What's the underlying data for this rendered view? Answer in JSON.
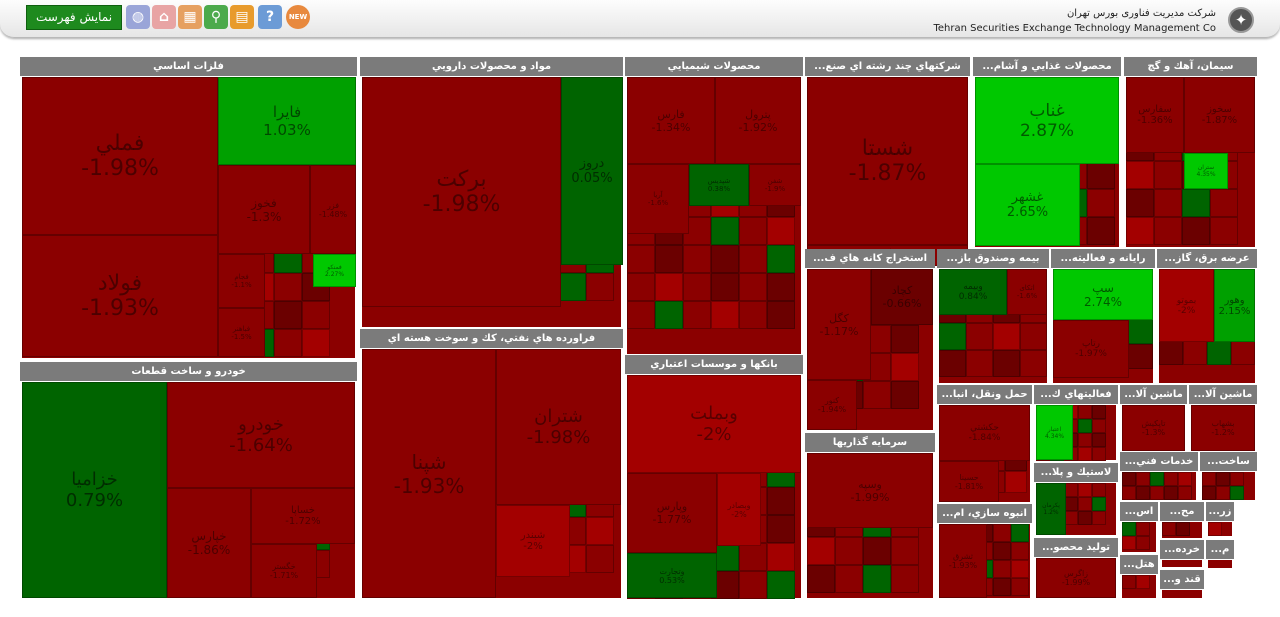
{
  "header": {
    "list_button": "نمایش فهرست",
    "company_fa": "شرکت مدیریت فناوری بورس تهران",
    "company_en": "Tehran Securities Exchange Technology Management Co",
    "icons": [
      "new-icon",
      "help-icon",
      "chat-icon",
      "search-icon",
      "table-icon",
      "home-icon",
      "globe-icon"
    ]
  },
  "sectors": [
    {
      "name": "فلزات اساسي",
      "stocks": [
        {
          "sym": "فملي",
          "chg": "-1.98%",
          "c": "neg1"
        },
        {
          "sym": "فولاد",
          "chg": "-1.93%",
          "c": "neg1"
        },
        {
          "sym": "فايرا",
          "chg": "1.03%",
          "c": "pos1"
        },
        {
          "sym": "فخوز",
          "chg": "-1.3%",
          "c": "neg1"
        },
        {
          "sym": "فزر",
          "chg": "-1.48%",
          "c": "neg1"
        },
        {
          "sym": "فمنكو",
          "chg": "2.27%",
          "c": "pos3"
        },
        {
          "sym": "فجام",
          "chg": "-1.1%",
          "c": "neg1"
        },
        {
          "sym": "فباهنر",
          "chg": "-1.5%",
          "c": "neg1"
        }
      ]
    },
    {
      "name": "مواد و محصولات دارويي",
      "stocks": [
        {
          "sym": "بركت",
          "chg": "-1.98%",
          "c": "neg1"
        },
        {
          "sym": "دروز",
          "chg": "0.05%",
          "c": "pos2"
        }
      ]
    },
    {
      "name": "محصولات شيميايي",
      "stocks": [
        {
          "sym": "فارس",
          "chg": "-1.34%",
          "c": "neg1"
        },
        {
          "sym": "پترول",
          "chg": "-1.92%",
          "c": "neg1"
        },
        {
          "sym": "شپديس",
          "chg": "0.38%",
          "c": "pos2"
        },
        {
          "sym": "آريا",
          "chg": "-1.6%",
          "c": "neg1"
        },
        {
          "sym": "شفن",
          "chg": "-1.9%",
          "c": "neg1"
        }
      ]
    },
    {
      "name": "شركتهاي چند رشته اي صنع...",
      "stocks": [
        {
          "sym": "شستا",
          "chg": "-1.87%",
          "c": "neg1"
        },
        {
          "sym": "وامید",
          "chg": "-1.99%",
          "c": "neg1"
        }
      ]
    },
    {
      "name": "محصولات غذايي و آشام...",
      "stocks": [
        {
          "sym": "غناب",
          "chg": "2.87%",
          "c": "pos3"
        },
        {
          "sym": "غشهر",
          "chg": "2.65%",
          "c": "pos3"
        }
      ]
    },
    {
      "name": "سيمان، آهك و گچ",
      "stocks": [
        {
          "sym": "سفارس",
          "chg": "-1.36%",
          "c": "neg1"
        },
        {
          "sym": "سخوز",
          "chg": "-1.87%",
          "c": "neg1"
        },
        {
          "sym": "ستران",
          "chg": "4.35%",
          "c": "pos3"
        }
      ]
    },
    {
      "name": "استخراج كانه هاي ف...",
      "stocks": [
        {
          "sym": "كگل",
          "chg": "-1.17%",
          "c": "neg1"
        },
        {
          "sym": "كچاد",
          "chg": "-0.66%",
          "c": "neg3"
        },
        {
          "sym": "كنور",
          "chg": "-1.94%",
          "c": "neg1"
        }
      ]
    },
    {
      "name": "بيمه وصندوق باز...",
      "stocks": [
        {
          "sym": "وبيمه",
          "chg": "0.84%",
          "c": "pos2"
        },
        {
          "sym": "اتكای",
          "chg": "-1.6%",
          "c": "neg1"
        }
      ]
    },
    {
      "name": "رايانه و فعاليته...",
      "stocks": [
        {
          "sym": "سپ",
          "chg": "2.74%",
          "c": "pos3"
        },
        {
          "sym": "رتاپ",
          "chg": "-1.97%",
          "c": "neg1"
        }
      ]
    },
    {
      "name": "عرضه برق، گاز...",
      "stocks": [
        {
          "sym": "بموتو",
          "chg": "-2%",
          "c": "neg2"
        },
        {
          "sym": "وهور",
          "chg": "2.15%",
          "c": "pos1"
        }
      ]
    },
    {
      "name": "خودرو و ساخت قطعات",
      "stocks": [
        {
          "sym": "خزاميا",
          "chg": "0.79%",
          "c": "pos2"
        },
        {
          "sym": "خودرو",
          "chg": "-1.64%",
          "c": "neg1"
        },
        {
          "sym": "خساپا",
          "chg": "-1.72%",
          "c": "neg1"
        },
        {
          "sym": "خپارس",
          "chg": "-1.86%",
          "c": "neg1"
        },
        {
          "sym": "خگستر",
          "chg": "-1.71%",
          "c": "neg1"
        }
      ]
    },
    {
      "name": "فراورده هاي نفتي، كك و سوخت هسته اي",
      "stocks": [
        {
          "sym": "شپنا",
          "chg": "-1.93%",
          "c": "neg1"
        },
        {
          "sym": "شتران",
          "chg": "-1.98%",
          "c": "neg1"
        },
        {
          "sym": "شبندر",
          "chg": "-2%",
          "c": "neg2"
        }
      ]
    },
    {
      "name": "بانكها و موسسات اعتباري",
      "stocks": [
        {
          "sym": "وبملت",
          "chg": "-2%",
          "c": "neg2"
        },
        {
          "sym": "وپارس",
          "chg": "-1.77%",
          "c": "neg1"
        },
        {
          "sym": "وبصادر",
          "chg": "-2%",
          "c": "neg2"
        },
        {
          "sym": "وتجارت",
          "chg": "0.53%",
          "c": "pos2"
        }
      ]
    },
    {
      "name": "سرمايه گذاريها",
      "stocks": [
        {
          "sym": "وسپه",
          "chg": "-1.99%",
          "c": "neg1"
        }
      ]
    },
    {
      "name": "حمل ونقل، انبا...",
      "stocks": [
        {
          "sym": "حكشتي",
          "chg": "-1.84%",
          "c": "neg1"
        },
        {
          "sym": "حسینا",
          "chg": "-1.81%",
          "c": "neg1"
        }
      ]
    },
    {
      "name": "فعاليتهاي ك...",
      "stocks": [
        {
          "sym": "اعتبار",
          "chg": "4.34%",
          "c": "pos3"
        }
      ]
    },
    {
      "name": "ماشين آلا...",
      "stocks": [
        {
          "sym": "تاپكيش",
          "chg": "-1.3%",
          "c": "neg1"
        }
      ]
    },
    {
      "name": "ماشين آلا...",
      "stocks": [
        {
          "sym": "بشهاب",
          "chg": "-1.2%",
          "c": "neg1"
        }
      ]
    },
    {
      "name": "لاستيك و پلا...",
      "stocks": [
        {
          "sym": "پكرمان",
          "chg": "1.2%",
          "c": "pos2"
        }
      ]
    },
    {
      "name": "انبوه سازي، ام...",
      "stocks": [
        {
          "sym": "ثشرق",
          "chg": "-1.93%",
          "c": "neg1"
        }
      ]
    },
    {
      "name": "توليد محصو...",
      "stocks": [
        {
          "sym": "زاگرس",
          "chg": "-1.99%",
          "c": "neg1"
        }
      ]
    },
    {
      "name": "خدمات فني...",
      "stocks": []
    },
    {
      "name": "ساخت...",
      "stocks": []
    },
    {
      "name": "اس...",
      "stocks": []
    },
    {
      "name": "مح...",
      "stocks": []
    },
    {
      "name": "زر...",
      "stocks": []
    },
    {
      "name": "خرده...",
      "stocks": []
    },
    {
      "name": "م...",
      "stocks": []
    },
    {
      "name": "هتل...",
      "stocks": []
    },
    {
      "name": "قند و...",
      "stocks": []
    }
  ]
}
